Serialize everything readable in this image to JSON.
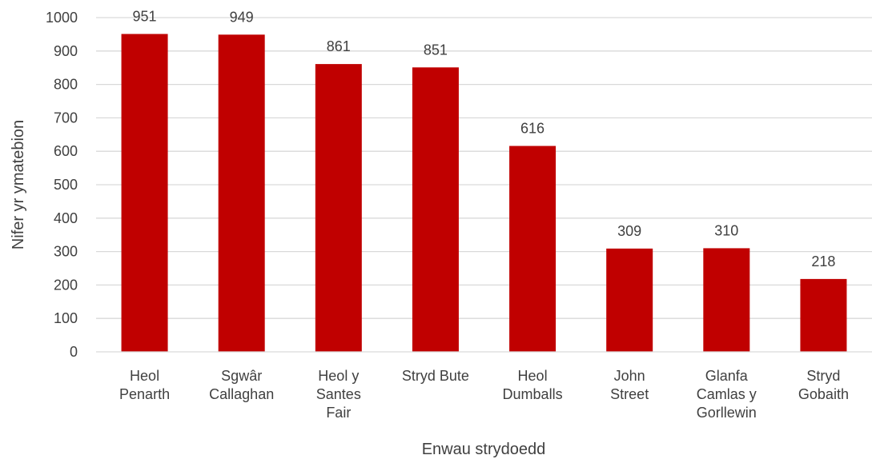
{
  "chart_data": {
    "type": "bar",
    "categories": [
      [
        "Heol",
        "Penarth"
      ],
      [
        "Sgwâr",
        "Callaghan"
      ],
      [
        "Heol y",
        "Santes",
        "Fair"
      ],
      [
        "Stryd Bute"
      ],
      [
        "Heol",
        "Dumballs"
      ],
      [
        "John",
        "Street"
      ],
      [
        "Glanfa",
        "Camlas y",
        "Gorllewin"
      ],
      [
        "Stryd",
        "Gobaith"
      ]
    ],
    "values": [
      951,
      949,
      861,
      851,
      616,
      309,
      310,
      218
    ],
    "data_labels": [
      "951",
      "949",
      "861",
      "851",
      "616",
      "309",
      "310",
      "218"
    ],
    "xlabel": "Enwau strydoedd",
    "ylabel": "Nifer yr ymatebion",
    "ylim": [
      0,
      1000
    ],
    "yticks": [
      0,
      100,
      200,
      300,
      400,
      500,
      600,
      700,
      800,
      900,
      1000
    ],
    "grid": "horizontal",
    "colors": {
      "bar": "#C00000",
      "grid": "#D9D9D9",
      "text": "#404040"
    }
  }
}
